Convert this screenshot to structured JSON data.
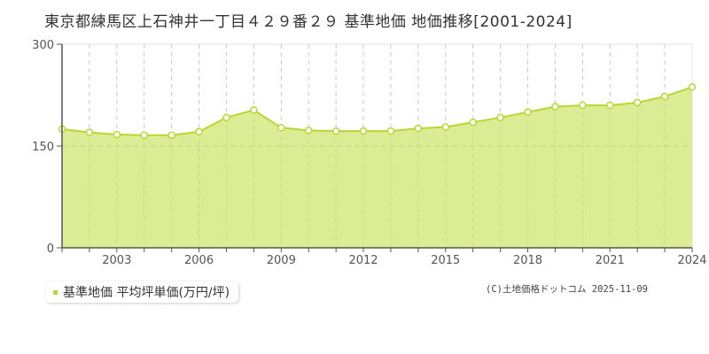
{
  "title": "東京都練馬区上石神井一丁目４２９番２９ 基準地価 地価推移[2001-2024]",
  "legend": {
    "label": "基準地価 平均坪単価(万円/坪)",
    "color": "#b7d832"
  },
  "credit": "(C)土地価格ドットコム 2025-11-09",
  "colors": {
    "fill": "#dcec94",
    "line": "#b7d832",
    "grid": "#c8c8c8",
    "axis": "#555555"
  },
  "chart_data": {
    "type": "area",
    "title": "東京都練馬区上石神井一丁目４２９番２９ 基準地価 地価推移[2001-2024]",
    "xlabel": "",
    "ylabel": "",
    "ylim": [
      0,
      300
    ],
    "yticks": [
      0,
      150,
      300
    ],
    "xtick_labels": [
      "2003",
      "2006",
      "2009",
      "2012",
      "2015",
      "2018",
      "2021",
      "2024"
    ],
    "grid": true,
    "legend_position": "bottom-left",
    "x": [
      2001,
      2002,
      2003,
      2004,
      2005,
      2006,
      2007,
      2008,
      2009,
      2010,
      2011,
      2012,
      2013,
      2014,
      2015,
      2016,
      2017,
      2018,
      2019,
      2020,
      2021,
      2022,
      2023,
      2024
    ],
    "series": [
      {
        "name": "基準地価 平均坪単価(万円/坪)",
        "values": [
          175,
          170,
          167,
          166,
          166,
          171,
          192,
          203,
          177,
          173,
          172,
          172,
          172,
          176,
          178,
          185,
          192,
          200,
          208,
          210,
          210,
          214,
          223,
          237
        ]
      }
    ]
  }
}
